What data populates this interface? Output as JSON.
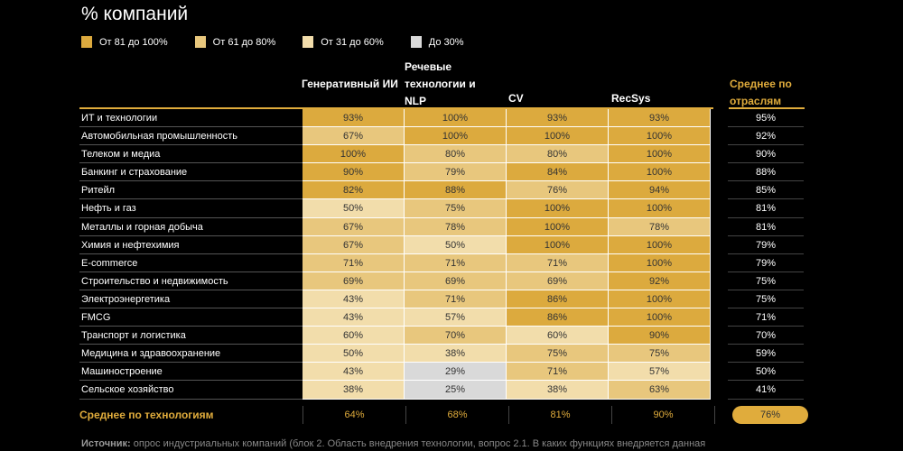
{
  "title": "% компаний",
  "colors": {
    "81-100": "#dcaa3e",
    "61-80": "#e8c77d",
    "31-60": "#f2ddab",
    "0-30": "#d9d9d9",
    "accent": "#e0ac3c"
  },
  "legend": [
    "От 81 до 100%",
    "От 61 до 80%",
    "От 31 до 60%",
    "До 30%"
  ],
  "chart_data": {
    "type": "table",
    "columns": [
      "Генеративный ИИ",
      "Речевые технологии и NLP",
      "CV",
      "RecSys"
    ],
    "avg_column_label": "Среднее по отраслям",
    "rows": [
      {
        "label": "ИТ и технологии",
        "values": [
          "93%",
          "100%",
          "93%",
          "93%"
        ],
        "avg": "95%"
      },
      {
        "label": "Автомобильная промышленность",
        "values": [
          "67%",
          "100%",
          "100%",
          "100%"
        ],
        "avg": "92%"
      },
      {
        "label": "Телеком и медиа",
        "values": [
          "100%",
          "80%",
          "80%",
          "100%"
        ],
        "avg": "90%"
      },
      {
        "label": "Банкинг и страхование",
        "values": [
          "90%",
          "79%",
          "84%",
          "100%"
        ],
        "avg": "88%"
      },
      {
        "label": "Ритейл",
        "values": [
          "82%",
          "88%",
          "76%",
          "94%"
        ],
        "avg": "85%"
      },
      {
        "label": "Нефть и газ",
        "values": [
          "50%",
          "75%",
          "100%",
          "100%"
        ],
        "avg": "81%"
      },
      {
        "label": "Металлы и горная добыча",
        "values": [
          "67%",
          "78%",
          "100%",
          "78%"
        ],
        "avg": "81%"
      },
      {
        "label": "Химия и нефтехимия",
        "values": [
          "67%",
          "50%",
          "100%",
          "100%"
        ],
        "avg": "79%"
      },
      {
        "label": "E-commerce",
        "values": [
          "71%",
          "71%",
          "71%",
          "100%"
        ],
        "avg": "79%"
      },
      {
        "label": "Строительство и недвижимость",
        "values": [
          "69%",
          "69%",
          "69%",
          "92%"
        ],
        "avg": "75%"
      },
      {
        "label": "Электроэнергетика",
        "values": [
          "43%",
          "71%",
          "86%",
          "100%"
        ],
        "avg": "75%"
      },
      {
        "label": "FMCG",
        "values": [
          "43%",
          "57%",
          "86%",
          "100%"
        ],
        "avg": "71%"
      },
      {
        "label": "Транспорт и логистика",
        "values": [
          "60%",
          "70%",
          "60%",
          "90%"
        ],
        "avg": "70%"
      },
      {
        "label": "Медицина и здравоохранение",
        "values": [
          "50%",
          "38%",
          "75%",
          "75%"
        ],
        "avg": "59%"
      },
      {
        "label": "Машиностроение",
        "values": [
          "43%",
          "29%",
          "71%",
          "57%"
        ],
        "avg": "50%"
      },
      {
        "label": "Сельское хозяйство",
        "values": [
          "38%",
          "25%",
          "38%",
          "63%"
        ],
        "avg": "41%"
      }
    ],
    "footer": {
      "label": "Среднее по технологиям",
      "values": [
        "64%",
        "68%",
        "81%",
        "90%"
      ],
      "avg": "76%"
    }
  },
  "source": {
    "label": "Источник:",
    "text": " опрос индустриальных компаний (блок 2. Область внедрения технологии, вопрос 2.1. В каких функциях внедряется данная"
  }
}
